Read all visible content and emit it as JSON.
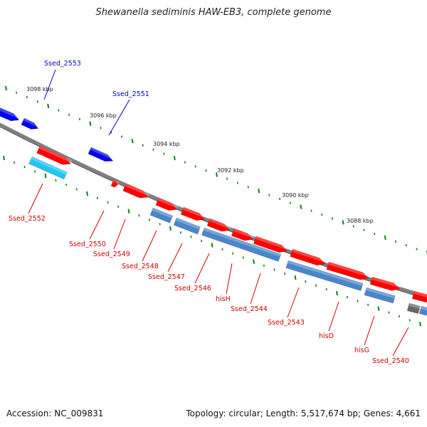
{
  "title": "Shewanella sediminis HAW-EB3, complete genome",
  "footer": {
    "accession": "Accession: NC_009831",
    "summary": "Topology: circular; Length: 5,517,674 bp; Genes: 4,661"
  },
  "colors": {
    "backbone": "#808080",
    "forward_gene": "#ff0000",
    "reverse_gene": "#0000ee",
    "cds_forward": "#4a86c8",
    "cds_reverse": "#22c4f0",
    "pseudo": "#666666",
    "tick": "#1a7a1a",
    "label_forward": "#cc0000",
    "label_reverse": "#0000cc"
  },
  "ruler_ticks": [
    {
      "label": "3098 kbp"
    },
    {
      "label": "3096 kbp"
    },
    {
      "label": "3094 kbp"
    },
    {
      "label": "3092 kbp"
    },
    {
      "label": "3090 kbp"
    },
    {
      "label": "3088 kbp"
    }
  ],
  "genes": [
    {
      "label": "Ssed_2553",
      "strand": "reverse"
    },
    {
      "label": "Ssed_2551",
      "strand": "reverse"
    },
    {
      "label": "Ssed_2552",
      "strand": "forward"
    },
    {
      "label": "Ssed_2550",
      "strand": "forward"
    },
    {
      "label": "Ssed_2549",
      "strand": "forward"
    },
    {
      "label": "Ssed_2548",
      "strand": "forward"
    },
    {
      "label": "Ssed_2547",
      "strand": "forward"
    },
    {
      "label": "Ssed_2546",
      "strand": "forward"
    },
    {
      "label": "hisH",
      "strand": "forward"
    },
    {
      "label": "Ssed_2544",
      "strand": "forward"
    },
    {
      "label": "Ssed_2543",
      "strand": "forward"
    },
    {
      "label": "hisD",
      "strand": "forward"
    },
    {
      "label": "hisG",
      "strand": "forward"
    },
    {
      "label": "Ssed_2540",
      "strand": "forward"
    }
  ]
}
